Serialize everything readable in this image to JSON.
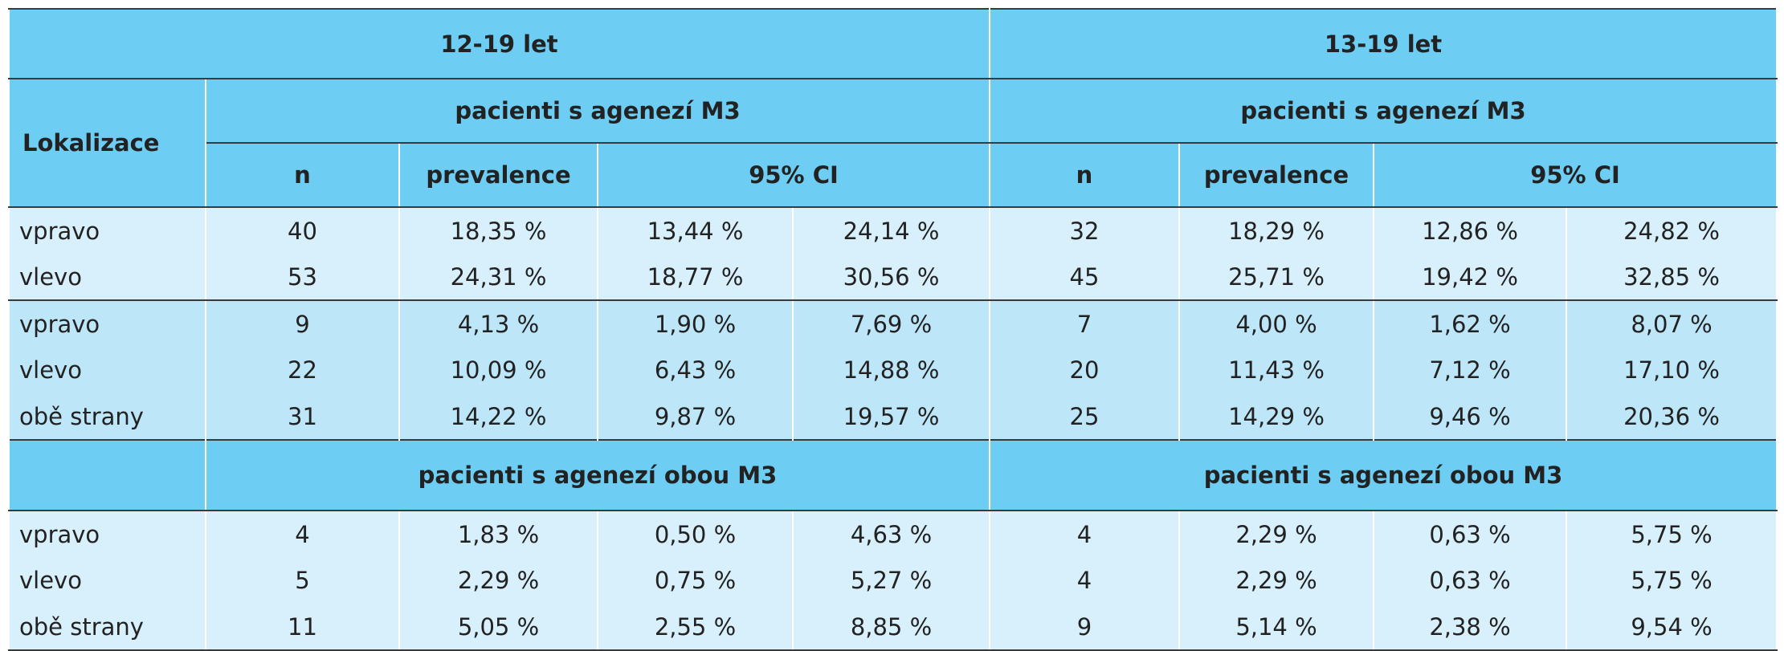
{
  "groups": {
    "g1": "12-19 let",
    "g2": "13-19 let"
  },
  "headers": {
    "lokalizace": "Lokalizace",
    "agenesis_m3": "pacienti s agenezí M3",
    "n": "n",
    "prevalence": "prevalence",
    "ci": "95% CI",
    "agenesis_both_m3": "pacienti s agenezí obou M3"
  },
  "section1": [
    {
      "label": "vpravo",
      "values": [
        "40",
        "18,35 %",
        "13,44 %",
        "24,14 %",
        "32",
        "18,29 %",
        "12,86 %",
        "24,82 %"
      ]
    },
    {
      "label": "vlevo",
      "values": [
        "53",
        "24,31 %",
        "18,77 %",
        "30,56 %",
        "45",
        "25,71 %",
        "19,42 %",
        "32,85 %"
      ]
    }
  ],
  "section2": [
    {
      "label": "vpravo",
      "values": [
        "9",
        "4,13 %",
        "1,90 %",
        "7,69 %",
        "7",
        "4,00 %",
        "1,62 %",
        "8,07 %"
      ]
    },
    {
      "label": "vlevo",
      "values": [
        "22",
        "10,09 %",
        "6,43 %",
        "14,88 %",
        "20",
        "11,43 %",
        "7,12 %",
        "17,10 %"
      ]
    },
    {
      "label": "obě strany",
      "values": [
        "31",
        "14,22 %",
        "9,87 %",
        "19,57 %",
        "25",
        "14,29 %",
        "9,46 %",
        "20,36 %"
      ]
    }
  ],
  "section3": [
    {
      "label": "vpravo",
      "values": [
        "4",
        "1,83 %",
        "0,50 %",
        "4,63 %",
        "4",
        "2,29 %",
        "0,63 %",
        "5,75 %"
      ]
    },
    {
      "label": "vlevo",
      "values": [
        "5",
        "2,29 %",
        "0,75 %",
        "5,27 %",
        "4",
        "2,29 %",
        "0,63 %",
        "5,75 %"
      ]
    },
    {
      "label": "obě strany",
      "values": [
        "11",
        "5,05 %",
        "2,55 %",
        "8,85 %",
        "9",
        "5,14 %",
        "2,38 %",
        "9,54 %"
      ]
    }
  ],
  "colors": {
    "header_bg": "#6dcdf3",
    "row_light": "#d8f0fb",
    "row_mid": "#bde6f8",
    "border": "#3a3a3a"
  }
}
